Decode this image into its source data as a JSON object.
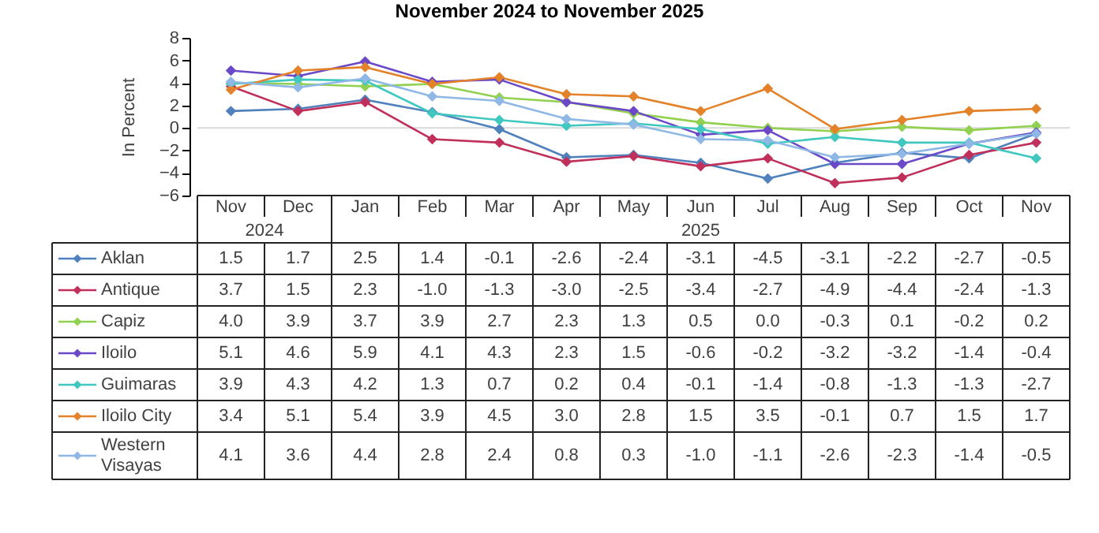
{
  "chart_data": {
    "type": "line",
    "title": "November 2024 to November 2025",
    "ylabel": "In Percent",
    "categories": [
      "Nov",
      "Dec",
      "Jan",
      "Feb",
      "Mar",
      "Apr",
      "May",
      "Jun",
      "Jul",
      "Aug",
      "Sep",
      "Oct",
      "Nov"
    ],
    "annotations": [
      "2024",
      "2025"
    ],
    "ylim": [
      -6,
      8
    ],
    "yticks": [
      -6,
      -4,
      -2,
      0,
      2,
      4,
      6,
      8
    ],
    "grid": false,
    "legend": "bottom",
    "marker": "diamond",
    "line_style": "solid",
    "ref_lines": [
      {
        "axis": "y",
        "value": 0,
        "color": "#d9d9d9"
      }
    ],
    "series": [
      {
        "name": "Aklan",
        "color": "#4f81bd",
        "values": [
          1.5,
          1.7,
          2.5,
          1.4,
          -0.1,
          -2.6,
          -2.4,
          -3.1,
          -4.5,
          -3.1,
          -2.2,
          -2.7,
          -0.5
        ],
        "value_labels": [
          "1.5",
          "1.7",
          "2.5",
          "1.4",
          "-0.1",
          "-2.6",
          "-2.4",
          "-3.1",
          "-4.5",
          "-3.1",
          "-2.2",
          "-2.7",
          "-0.5"
        ]
      },
      {
        "name": "Antique",
        "color": "#c0305a",
        "values": [
          3.7,
          1.5,
          2.3,
          -1.0,
          -1.3,
          -3.0,
          -2.5,
          -3.4,
          -2.7,
          -4.9,
          -4.4,
          -2.4,
          -1.3
        ],
        "value_labels": [
          "3.7",
          "1.5",
          "2.3",
          "-1.0",
          "-1.3",
          "-3.0",
          "-2.5",
          "-3.4",
          "-2.7",
          "-4.9",
          "-4.4",
          "-2.4",
          "-1.3"
        ]
      },
      {
        "name": "Capiz",
        "color": "#92d050",
        "values": [
          4.0,
          3.9,
          3.7,
          3.9,
          2.7,
          2.3,
          1.3,
          0.5,
          0.0,
          -0.3,
          0.1,
          -0.2,
          0.2
        ],
        "value_labels": [
          "4.0",
          "3.9",
          "3.7",
          "3.9",
          "2.7",
          "2.3",
          "1.3",
          "0.5",
          "0.0",
          "-0.3",
          "0.1",
          "-0.2",
          "0.2"
        ]
      },
      {
        "name": "Iloilo",
        "color": "#6a48c8",
        "values": [
          5.1,
          4.6,
          5.9,
          4.1,
          4.3,
          2.3,
          1.5,
          -0.6,
          -0.2,
          -3.2,
          -3.2,
          -1.4,
          -0.4
        ],
        "value_labels": [
          "5.1",
          "4.6",
          "5.9",
          "4.1",
          "4.3",
          "2.3",
          "1.5",
          "-0.6",
          "-0.2",
          "-3.2",
          "-3.2",
          "-1.4",
          "-0.4"
        ]
      },
      {
        "name": "Guimaras",
        "color": "#40c8c0",
        "values": [
          3.9,
          4.3,
          4.2,
          1.3,
          0.7,
          0.2,
          0.4,
          -0.1,
          -1.4,
          -0.8,
          -1.3,
          -1.3,
          -2.7
        ],
        "value_labels": [
          "3.9",
          "4.3",
          "4.2",
          "1.3",
          "0.7",
          "0.2",
          "0.4",
          "-0.1",
          "-1.4",
          "-0.8",
          "-1.3",
          "-1.3",
          "-2.7"
        ]
      },
      {
        "name": "Iloilo City",
        "color": "#e4822a",
        "values": [
          3.4,
          5.1,
          5.4,
          3.9,
          4.5,
          3.0,
          2.8,
          1.5,
          3.5,
          -0.1,
          0.7,
          1.5,
          1.7
        ],
        "value_labels": [
          "3.4",
          "5.1",
          "5.4",
          "3.9",
          "4.5",
          "3.0",
          "2.8",
          "1.5",
          "3.5",
          "-0.1",
          "0.7",
          "1.5",
          "1.7"
        ]
      },
      {
        "name": "Western Visayas",
        "color": "#8fb8e6",
        "values": [
          4.1,
          3.6,
          4.4,
          2.8,
          2.4,
          0.8,
          0.3,
          -1.0,
          -1.1,
          -2.6,
          -2.3,
          -1.4,
          -0.5
        ],
        "value_labels": [
          "4.1",
          "3.6",
          "4.4",
          "2.8",
          "2.4",
          "0.8",
          "0.3",
          "-1.0",
          "-1.1",
          "-2.6",
          "-2.3",
          "-1.4",
          "-0.5"
        ]
      }
    ]
  }
}
